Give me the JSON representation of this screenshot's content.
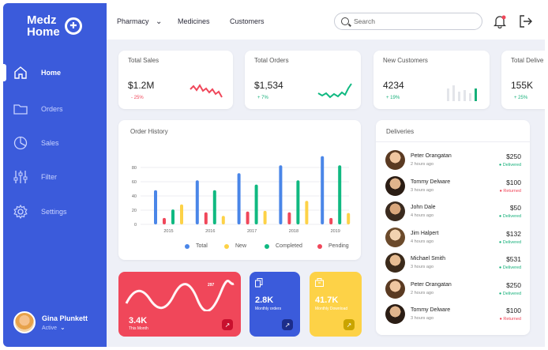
{
  "brand": {
    "line1": "Medz",
    "line2": "Home"
  },
  "sidebar": {
    "items": [
      {
        "label": "Home",
        "icon": "home-icon",
        "active": true
      },
      {
        "label": "Orders",
        "icon": "folder-icon",
        "active": false
      },
      {
        "label": "Sales",
        "icon": "pie-chart-icon",
        "active": false
      },
      {
        "label": "Filter",
        "icon": "sliders-icon",
        "active": false
      },
      {
        "label": "Settings",
        "icon": "gear-icon",
        "active": false
      }
    ],
    "user": {
      "name": "Gina Plunkett",
      "status": "Active"
    }
  },
  "topbar": {
    "nav": [
      "Pharmacy",
      "Medicines",
      "Customers"
    ],
    "search_placeholder": "Search"
  },
  "stats": [
    {
      "title": "Total Sales",
      "value": "$1.2M",
      "change": "- 25%",
      "trend": "down"
    },
    {
      "title": "Total Orders",
      "value": "$1,534",
      "change": "+ 7%",
      "trend": "up"
    },
    {
      "title": "New Customers",
      "value": "4234",
      "change": "+ 19%",
      "trend": "up"
    },
    {
      "title": "Total Delive",
      "value": "155K",
      "change": "+ 25%",
      "trend": "up"
    }
  ],
  "order_history": {
    "title": "Order History",
    "chart_data": {
      "type": "bar",
      "categories": [
        "2015",
        "2016",
        "2017",
        "2018",
        "2019"
      ],
      "ylim": [
        0,
        100
      ],
      "yticks": [
        "0",
        "20",
        "40",
        "60",
        "80"
      ],
      "series": [
        {
          "name": "Total",
          "color": "#4a86e8",
          "values": [
            48,
            62,
            72,
            83,
            96
          ]
        },
        {
          "name": "New",
          "color": "#fdd247",
          "values": [
            28,
            12,
            19,
            33,
            16
          ]
        },
        {
          "name": "Completed",
          "color": "#10b981",
          "values": [
            21,
            48,
            56,
            62,
            83
          ]
        },
        {
          "name": "Pending",
          "color": "#f0475a",
          "values": [
            9,
            17,
            18,
            17,
            9
          ]
        }
      ]
    }
  },
  "deliveries": {
    "title": "Deliveries",
    "items": [
      {
        "name": "Peter Orangatan",
        "time": "2 hours ago",
        "amount": "$250",
        "status": "Delivered"
      },
      {
        "name": "Tommy Delware",
        "time": "3 hours ago",
        "amount": "$100",
        "status": "Returned"
      },
      {
        "name": "John Dale",
        "time": "4 hours ago",
        "amount": "$50",
        "status": "Delivered"
      },
      {
        "name": "Jim Halpert",
        "time": "4 hours ago",
        "amount": "$132",
        "status": "Delivered"
      },
      {
        "name": "Michael Smith",
        "time": "3 hours ago",
        "amount": "$531",
        "status": "Delivered"
      },
      {
        "name": "Peter Orangatan",
        "time": "2 hours ago",
        "amount": "$250",
        "status": "Delivered"
      },
      {
        "name": "Tommy Delware",
        "time": "3 hours ago",
        "amount": "$100",
        "status": "Returned"
      }
    ]
  },
  "promos": [
    {
      "value": "3.4K",
      "label": "This Month",
      "marker": "297",
      "color": "#f0475a"
    },
    {
      "value": "2.8K",
      "label": "Monthly orders",
      "color": "#3b5bdb"
    },
    {
      "value": "41.7K",
      "label": "Monthly Download",
      "color": "#fdd247"
    }
  ],
  "colors": {
    "accent": "#3b5bdb",
    "delivered": "#16b07a",
    "returned": "#f0475a"
  }
}
